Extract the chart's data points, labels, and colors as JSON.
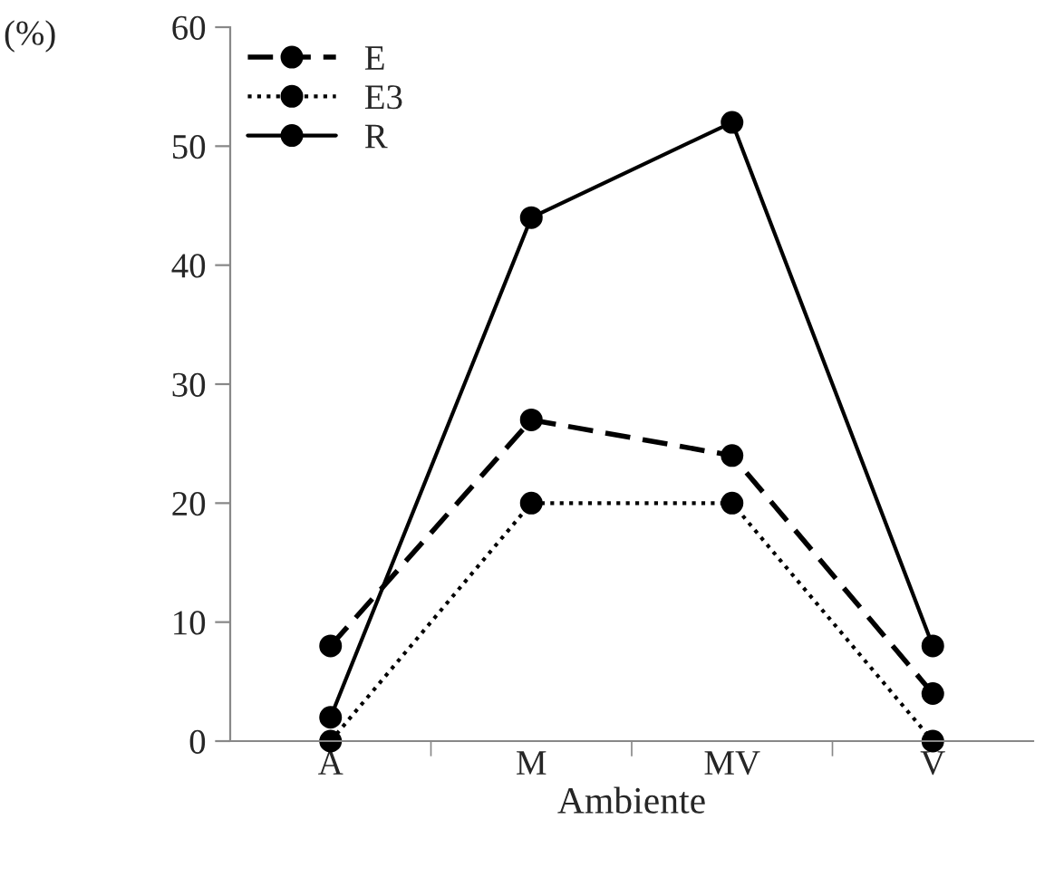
{
  "chart_data": {
    "type": "line",
    "ylabel": "(%)",
    "xlabel": "Ambiente",
    "categories": [
      "A",
      "M",
      "MV",
      "V"
    ],
    "series": [
      {
        "name": "E",
        "color": "#000000",
        "line_style": "dashed",
        "values": [
          8,
          27,
          24,
          4
        ]
      },
      {
        "name": "E3",
        "color": "#000000",
        "line_style": "dotted",
        "values": [
          0,
          20,
          20,
          0
        ]
      },
      {
        "name": "R",
        "color": "#000000",
        "line_style": "solid",
        "values": [
          2,
          44,
          52,
          8
        ]
      }
    ],
    "marker": "circle",
    "ylim": [
      0,
      60
    ],
    "yticks": [
      0,
      10,
      20,
      30,
      40,
      50,
      60
    ],
    "grid": false,
    "legend": "top left"
  }
}
